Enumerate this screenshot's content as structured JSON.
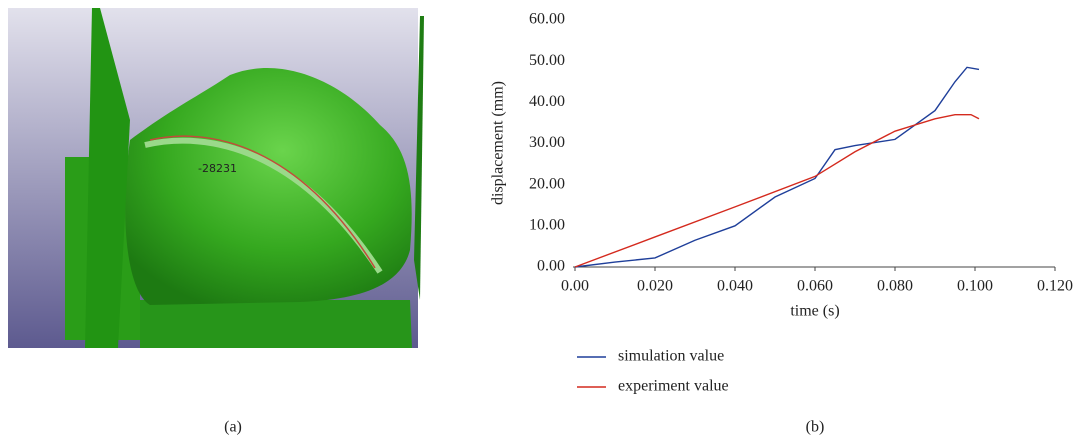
{
  "panel_a": {
    "render_label": "-28231",
    "caption": "(a)"
  },
  "chart_data": {
    "type": "line",
    "caption": "(b)",
    "x_label": "time (s)",
    "y_label": "displacement (mm)",
    "xlim": [
      0,
      0.12
    ],
    "ylim": [
      0,
      60
    ],
    "xticks": [
      {
        "value": 0,
        "label": "0.00"
      },
      {
        "value": 0.02,
        "label": "0.020"
      },
      {
        "value": 0.04,
        "label": "0.040"
      },
      {
        "value": 0.06,
        "label": "0.060"
      },
      {
        "value": 0.08,
        "label": "0.080"
      },
      {
        "value": 0.1,
        "label": "0.100"
      },
      {
        "value": 0.12,
        "label": "0.120"
      }
    ],
    "yticks": [
      {
        "value": 0,
        "label": "0.00"
      },
      {
        "value": 10,
        "label": "10.00"
      },
      {
        "value": 20,
        "label": "20.00"
      },
      {
        "value": 30,
        "label": "30.00"
      },
      {
        "value": 40,
        "label": "40.00"
      },
      {
        "value": 50,
        "label": "50.00"
      },
      {
        "value": 60,
        "label": "60.00"
      }
    ],
    "grid": false,
    "series": [
      {
        "name": "simulation value",
        "color": "#1f3f9a",
        "x": [
          0,
          0.01,
          0.02,
          0.03,
          0.04,
          0.05,
          0.06,
          0.065,
          0.07,
          0.08,
          0.09,
          0.095,
          0.098,
          0.101
        ],
        "values": [
          0,
          1.2,
          2.2,
          6.5,
          10,
          17,
          21.5,
          28.5,
          29.5,
          31,
          38,
          45,
          48.5,
          48
        ]
      },
      {
        "name": "experiment value",
        "color": "#d42a1e",
        "x": [
          0,
          0.02,
          0.04,
          0.06,
          0.07,
          0.08,
          0.09,
          0.095,
          0.099,
          0.101
        ],
        "values": [
          0,
          7.3,
          14.6,
          22,
          28,
          33,
          36,
          37,
          37,
          36
        ]
      }
    ]
  }
}
